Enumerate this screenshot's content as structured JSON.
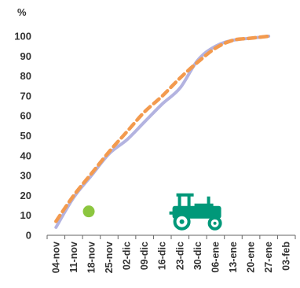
{
  "chart_data": {
    "type": "line",
    "ylabel": "%",
    "ylim": [
      0,
      100
    ],
    "yticks": [
      0,
      10,
      20,
      30,
      40,
      50,
      60,
      70,
      80,
      90,
      100
    ],
    "categories": [
      "04-nov",
      "11-nov",
      "18-nov",
      "25-nov",
      "02-dic",
      "09-dic",
      "16-dic",
      "23-dic",
      "30-dic",
      "06-ene",
      "13-ene",
      "20-ene",
      "27-ene",
      "03-feb"
    ],
    "grid": false,
    "series": [
      {
        "style": "solid",
        "color": "#b3b3e0",
        "points": [
          [
            0,
            4
          ],
          [
            1,
            19
          ],
          [
            2,
            30
          ],
          [
            3,
            41
          ],
          [
            4,
            48
          ],
          [
            5,
            57
          ],
          [
            6,
            66
          ],
          [
            7,
            74
          ],
          [
            8,
            88
          ],
          [
            9,
            95
          ],
          [
            10,
            98
          ],
          [
            11,
            99
          ],
          [
            12,
            100
          ]
        ]
      },
      {
        "style": "dashed",
        "color": "#f39a4e",
        "points": [
          [
            0,
            7
          ],
          [
            1,
            20
          ],
          [
            2,
            31
          ],
          [
            3,
            42
          ],
          [
            4,
            52
          ],
          [
            5,
            62
          ],
          [
            6,
            70
          ],
          [
            7,
            79
          ],
          [
            8,
            87
          ],
          [
            9,
            94
          ],
          [
            10,
            98
          ],
          [
            11,
            99
          ],
          [
            12,
            100
          ]
        ]
      }
    ],
    "markers": [
      {
        "type": "dot",
        "color": "#8cc63f",
        "x": 1.85,
        "y": 12
      },
      {
        "type": "tractor-icon",
        "color": "#009879",
        "x": 7.9,
        "y": 10
      }
    ]
  }
}
